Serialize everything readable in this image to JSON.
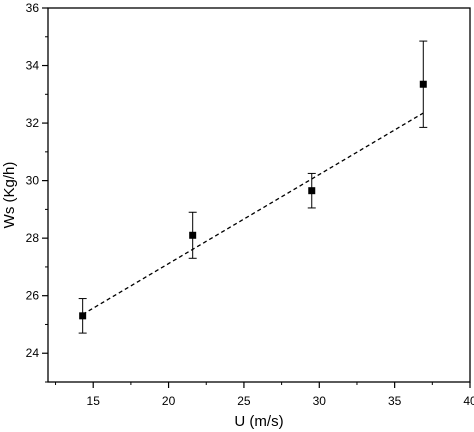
{
  "chart_data": {
    "type": "scatter",
    "xlabel": "U (m/s)",
    "ylabel": "Ws (Kg/h)",
    "xlim": [
      12,
      40
    ],
    "ylim": [
      23,
      36
    ],
    "x_ticks": [
      "15",
      "20",
      "25",
      "30",
      "35",
      "40"
    ],
    "y_ticks": [
      "24",
      "26",
      "28",
      "30",
      "32",
      "34",
      "36"
    ],
    "grid": false,
    "series": [
      {
        "points": [
          {
            "x": 14.3,
            "y": 25.3,
            "err": 0.6
          },
          {
            "x": 21.6,
            "y": 28.1,
            "err": 0.8
          },
          {
            "x": 29.5,
            "y": 29.65,
            "err": 0.6
          },
          {
            "x": 36.9,
            "y": 33.35,
            "err": 1.5
          }
        ]
      }
    ],
    "fit_line": {
      "style": "dashed",
      "x": [
        14.3,
        36.9
      ],
      "y": [
        25.35,
        32.35
      ]
    },
    "colors": {
      "marker": "#000000",
      "line": "#000000"
    }
  }
}
